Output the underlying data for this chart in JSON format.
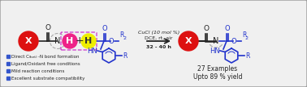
{
  "bg_color": "#f0f0f0",
  "border_color": "#999999",
  "blue": "#2233cc",
  "red": "#dd1111",
  "pink": "#ee2288",
  "yellow": "#eeee00",
  "dashed_box": "#cc33cc",
  "gray_dash": "#aaaaaa",
  "black": "#222222",
  "bullet_blue": "#3355cc",
  "arrow_label1": "CuCl (10 mol %)",
  "arrow_label2": "DCE, rt, air",
  "arrow_label3": "32 - 40 h",
  "bullets": [
    "Direct C(het)-N bond formation",
    "Ligand/Oxidant free conditions",
    "Mild reaction conditions",
    "Excellent substrate compatibility"
  ],
  "result1": "27 Examples",
  "result2": "Upto 89 % yield"
}
